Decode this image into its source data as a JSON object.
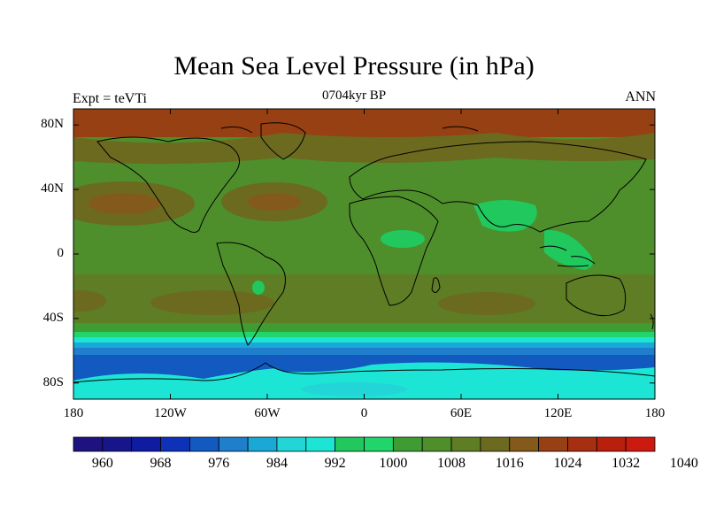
{
  "title": "Mean Sea Level Pressure (in hPa)",
  "subtitle": "0704kyr BP",
  "left_label": "Expt = teVTi",
  "right_label": "ANN",
  "map": {
    "lat_ticks": [
      {
        "value": 80,
        "label": "80N"
      },
      {
        "value": 40,
        "label": "40N"
      },
      {
        "value": 0,
        "label": "0"
      },
      {
        "value": -40,
        "label": "40S"
      },
      {
        "value": -80,
        "label": "80S"
      }
    ],
    "lon_ticks": [
      {
        "value": -180,
        "label": "180"
      },
      {
        "value": -120,
        "label": "120W"
      },
      {
        "value": -60,
        "label": "60W"
      },
      {
        "value": 0,
        "label": "0"
      },
      {
        "value": 60,
        "label": "60E"
      },
      {
        "value": 120,
        "label": "120E"
      },
      {
        "value": 180,
        "label": "180"
      }
    ],
    "lat_range": [
      -90,
      90
    ],
    "lon_range": [
      -180,
      180
    ]
  },
  "colorbar": {
    "labels": [
      "960",
      "968",
      "976",
      "984",
      "992",
      "1000",
      "1008",
      "1016",
      "1024",
      "1032",
      "1040"
    ],
    "colors": [
      "#1d1280",
      "#16168a",
      "#0f1ba0",
      "#0d32b8",
      "#1259c0",
      "#1f7fcc",
      "#1aa8d6",
      "#22d6d8",
      "#1de5d5",
      "#20c85e",
      "#21d56a",
      "#3f9c33",
      "#4e8f2c",
      "#5e7d24",
      "#6c6a1f",
      "#845a1c",
      "#964013",
      "#a62f12",
      "#b8200d",
      "#cc1a10"
    ]
  }
}
